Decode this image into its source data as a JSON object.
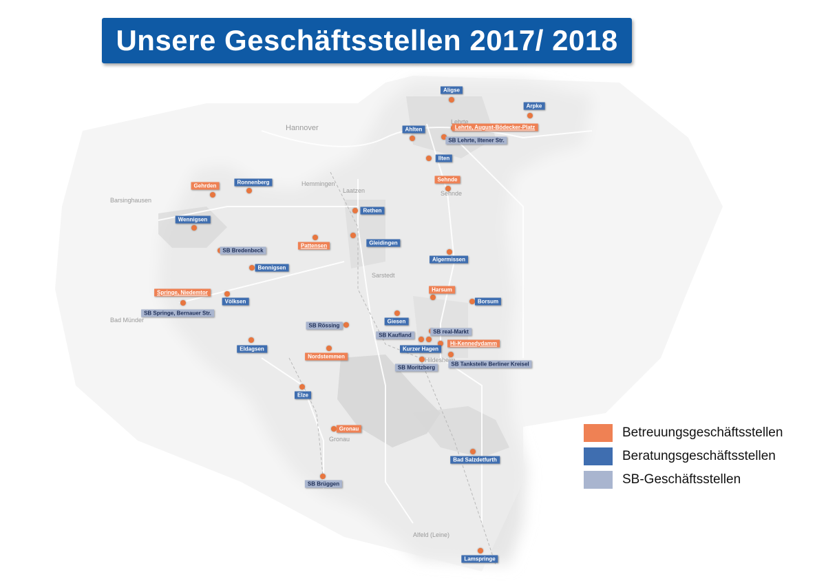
{
  "title": "Unsere Geschäftsstellen 2017/ 2018",
  "colors": {
    "title_bg": "#0f5aa5",
    "betreuung": "#ef8154",
    "beratung": "#3f6eb0",
    "sb": "#a9b5cf",
    "dot": "#e8763f"
  },
  "legend": [
    {
      "type": "betreuung",
      "label": "Betreuungsgeschäftsstellen"
    },
    {
      "type": "beratung",
      "label": "Beratungsgeschäftsstellen"
    },
    {
      "type": "sb",
      "label": "SB-Geschäftsstellen"
    }
  ],
  "background_place_names": [
    "Hannover",
    "Sarstedt",
    "Hildesheim",
    "Gronau",
    "Barsinghausen",
    "Bad Münder",
    "Hemmingen",
    "Laatzen",
    "Lehrte",
    "Sehnde",
    "Alfeld (Leine)"
  ],
  "branches": [
    {
      "name": "Aligse",
      "type": "beratung"
    },
    {
      "name": "Arpke",
      "type": "beratung"
    },
    {
      "name": "Ahlten",
      "type": "beratung"
    },
    {
      "name": "Lehrte, August-Bödecker-Platz",
      "type": "betreuung"
    },
    {
      "name": "SB Lehrte, Iltener Str.",
      "type": "sb"
    },
    {
      "name": "Ilten",
      "type": "beratung"
    },
    {
      "name": "Sehnde",
      "type": "betreuung"
    },
    {
      "name": "Gehrden",
      "type": "betreuung"
    },
    {
      "name": "Ronnenberg",
      "type": "beratung"
    },
    {
      "name": "Rethen",
      "type": "beratung"
    },
    {
      "name": "Wennigsen",
      "type": "beratung"
    },
    {
      "name": "SB Bredenbeck",
      "type": "sb"
    },
    {
      "name": "Pattensen",
      "type": "betreuung"
    },
    {
      "name": "Gleidingen",
      "type": "beratung"
    },
    {
      "name": "Algermissen",
      "type": "beratung"
    },
    {
      "name": "Bennigsen",
      "type": "beratung"
    },
    {
      "name": "Springe, Niedemtor",
      "type": "betreuung"
    },
    {
      "name": "Harsum",
      "type": "betreuung"
    },
    {
      "name": "Völksen",
      "type": "beratung"
    },
    {
      "name": "Borsum",
      "type": "beratung"
    },
    {
      "name": "SB Springe, Bernauer Str.",
      "type": "sb"
    },
    {
      "name": "Giesen",
      "type": "beratung"
    },
    {
      "name": "SB Rössing",
      "type": "sb"
    },
    {
      "name": "SB real-Markt",
      "type": "sb"
    },
    {
      "name": "SB Kaufland",
      "type": "sb"
    },
    {
      "name": "Hi-Kennedydamm",
      "type": "betreuung"
    },
    {
      "name": "Eldagsen",
      "type": "beratung"
    },
    {
      "name": "Kurzer Hagen",
      "type": "beratung"
    },
    {
      "name": "Nordstemmen",
      "type": "betreuung"
    },
    {
      "name": "SB Tankstelle Berliner Kreisel",
      "type": "sb"
    },
    {
      "name": "SB Moritzberg",
      "type": "sb"
    },
    {
      "name": "Elze",
      "type": "beratung"
    },
    {
      "name": "Gronau",
      "type": "betreuung"
    },
    {
      "name": "Bad Salzdetfurth",
      "type": "beratung"
    },
    {
      "name": "SB Brüggen",
      "type": "sb"
    },
    {
      "name": "Lamspringe",
      "type": "beratung"
    }
  ]
}
